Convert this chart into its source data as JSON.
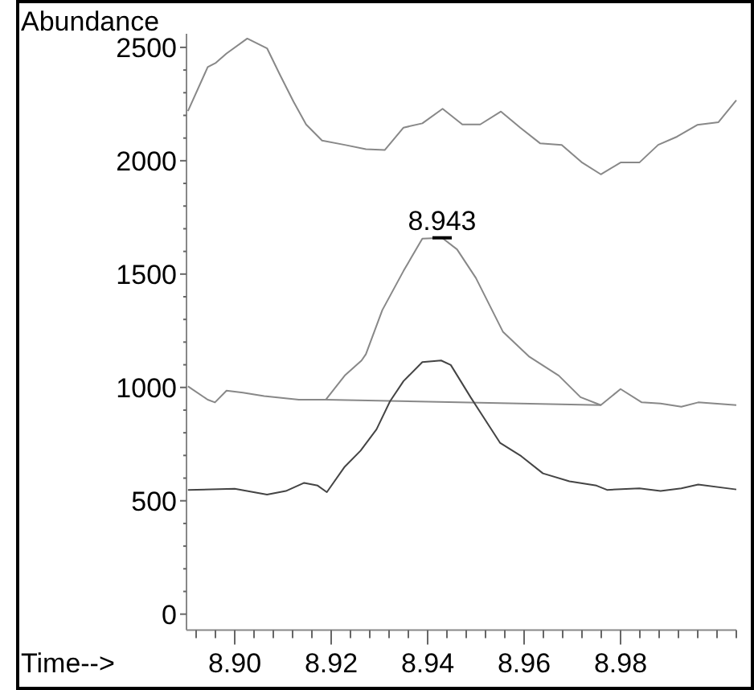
{
  "chart_data": {
    "type": "line",
    "xlabel": "Time-->",
    "ylabel": "Abundance",
    "xlim": [
      8.89,
      9.004
    ],
    "ylim": [
      -70,
      2560
    ],
    "xticks": [
      {
        "value": 8.892,
        "label": null
      },
      {
        "value": 8.896,
        "label": null
      },
      {
        "value": 8.9,
        "label": "8.90"
      },
      {
        "value": 8.904,
        "label": null
      },
      {
        "value": 8.908,
        "label": null
      },
      {
        "value": 8.912,
        "label": null
      },
      {
        "value": 8.916,
        "label": null
      },
      {
        "value": 8.92,
        "label": "8.92"
      },
      {
        "value": 8.924,
        "label": null
      },
      {
        "value": 8.928,
        "label": null
      },
      {
        "value": 8.932,
        "label": null
      },
      {
        "value": 8.936,
        "label": null
      },
      {
        "value": 8.94,
        "label": "8.94"
      },
      {
        "value": 8.944,
        "label": null
      },
      {
        "value": 8.948,
        "label": null
      },
      {
        "value": 8.952,
        "label": null
      },
      {
        "value": 8.956,
        "label": null
      },
      {
        "value": 8.96,
        "label": "8.96"
      },
      {
        "value": 8.964,
        "label": null
      },
      {
        "value": 8.968,
        "label": null
      },
      {
        "value": 8.972,
        "label": null
      },
      {
        "value": 8.976,
        "label": null
      },
      {
        "value": 8.98,
        "label": "8.98"
      },
      {
        "value": 8.984,
        "label": null
      },
      {
        "value": 8.988,
        "label": null
      },
      {
        "value": 8.992,
        "label": null
      },
      {
        "value": 8.996,
        "label": null
      },
      {
        "value": 9.0,
        "label": null
      },
      {
        "value": 9.004,
        "label": null
      }
    ],
    "yticks": [
      0,
      {
        "value": 100,
        "label": null
      },
      {
        "value": 200,
        "label": null
      },
      {
        "value": 300,
        "label": null
      },
      {
        "value": 400,
        "label": null
      },
      500,
      {
        "value": 600,
        "label": null
      },
      {
        "value": 700,
        "label": null
      },
      {
        "value": 800,
        "label": null
      },
      {
        "value": 900,
        "label": null
      },
      1000,
      {
        "value": 1100,
        "label": null
      },
      {
        "value": 1200,
        "label": null
      },
      {
        "value": 1300,
        "label": null
      },
      {
        "value": 1400,
        "label": null
      },
      1500,
      {
        "value": 1600,
        "label": null
      },
      {
        "value": 1700,
        "label": null
      },
      {
        "value": 1800,
        "label": null
      },
      {
        "value": 1900,
        "label": null
      },
      2000,
      {
        "value": 2100,
        "label": null
      },
      {
        "value": 2200,
        "label": null
      },
      {
        "value": 2300,
        "label": null
      },
      {
        "value": 2400,
        "label": null
      },
      2500
    ],
    "grid": false,
    "marker": "none",
    "line_style": "solid",
    "annotations": [
      {
        "text": "8.943",
        "x": 8.943,
        "y": 1660
      }
    ],
    "series": [
      {
        "color": "#888888",
        "x": [
          8.8903,
          8.8944,
          8.8961,
          8.8983,
          8.9026,
          8.9067,
          8.9094,
          8.9122,
          8.9148,
          8.9181,
          8.9228,
          8.9272,
          8.9311,
          8.935,
          8.9389,
          8.9431,
          8.9472,
          8.9509,
          8.9552,
          8.9592,
          8.9633,
          8.9678,
          8.9719,
          8.9759,
          8.98,
          8.9839,
          8.9878,
          8.9917,
          8.9959,
          9.0003,
          9.004
        ],
        "values": [
          2219,
          2413,
          2432,
          2473,
          2539,
          2496,
          2378,
          2260,
          2160,
          2089,
          2070,
          2051,
          2047,
          2146,
          2165,
          2229,
          2160,
          2160,
          2217,
          2146,
          2077,
          2070,
          1994,
          1940,
          1992,
          1992,
          2070,
          2106,
          2158,
          2170,
          2267
        ]
      },
      {
        "color": "#888888",
        "x": [
          8.8903,
          8.8944,
          8.8959,
          8.8983,
          8.9017,
          8.9061,
          8.9133,
          8.9189,
          8.9228,
          8.9263,
          8.9272,
          8.9306,
          8.935,
          8.9389,
          8.943,
          8.9461,
          8.95,
          8.9556,
          8.9611,
          8.9672,
          8.9717,
          8.9759,
          8.98,
          8.9844,
          8.9883,
          8.9926,
          8.9961,
          9.004
        ],
        "values": [
          1005,
          946,
          934,
          986,
          977,
          962,
          946,
          946,
          1052,
          1119,
          1147,
          1341,
          1514,
          1656,
          1660,
          1609,
          1483,
          1246,
          1135,
          1052,
          957,
          922,
          993,
          934,
          929,
          915,
          934,
          922
        ]
      },
      {
        "color": "#888888",
        "x": [
          8.9189,
          8.9759
        ],
        "values": [
          946,
          922
        ]
      },
      {
        "color": "#444444",
        "x": [
          8.8903,
          8.9,
          8.9067,
          8.9106,
          8.9144,
          8.9172,
          8.9191,
          8.9228,
          8.9261,
          8.9294,
          8.9322,
          8.935,
          8.9389,
          8.9428,
          8.9448,
          8.9489,
          8.955,
          8.9594,
          8.9639,
          8.9694,
          8.975,
          8.9772,
          8.9839,
          8.9883,
          8.9926,
          8.9961,
          9.004
        ],
        "values": [
          548,
          553,
          527,
          543,
          579,
          567,
          538,
          650,
          721,
          815,
          939,
          1028,
          1112,
          1119,
          1099,
          957,
          756,
          697,
          621,
          586,
          567,
          548,
          555,
          543,
          555,
          572,
          550
        ]
      }
    ]
  }
}
